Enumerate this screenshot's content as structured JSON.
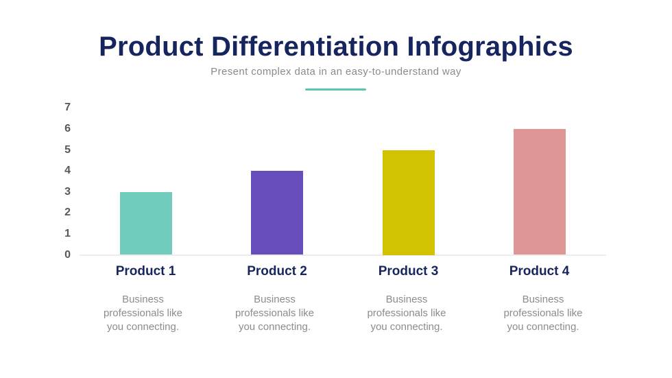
{
  "page": {
    "background": "#ffffff"
  },
  "header": {
    "title": "Product Differentiation Infographics",
    "subtitle": "Present complex data in an easy-to-understand way",
    "title_color": "#17255f",
    "subtitle_color": "#8a8a8a",
    "divider_color": "#5bc4b2"
  },
  "chart_data": {
    "type": "bar",
    "title": "",
    "xlabel": "",
    "ylabel": "",
    "categories": [
      "Product 1",
      "Product 2",
      "Product 3",
      "Product 4"
    ],
    "values": [
      3,
      4,
      5,
      6
    ],
    "bar_colors": [
      "#70cdbe",
      "#684dbd",
      "#d3c202",
      "#de9795"
    ],
    "y_ticks": [
      0,
      1,
      2,
      3,
      4,
      5,
      6,
      7
    ],
    "ylim": [
      0,
      7
    ],
    "grid": false,
    "legend": false
  },
  "products": [
    {
      "label": "Product 1",
      "description": "Business professionals like you connecting."
    },
    {
      "label": "Product 2",
      "description": "Business professionals like you connecting."
    },
    {
      "label": "Product 3",
      "description": "Business professionals like you connecting."
    },
    {
      "label": "Product 4",
      "description": "Business professionals like you connecting."
    }
  ]
}
